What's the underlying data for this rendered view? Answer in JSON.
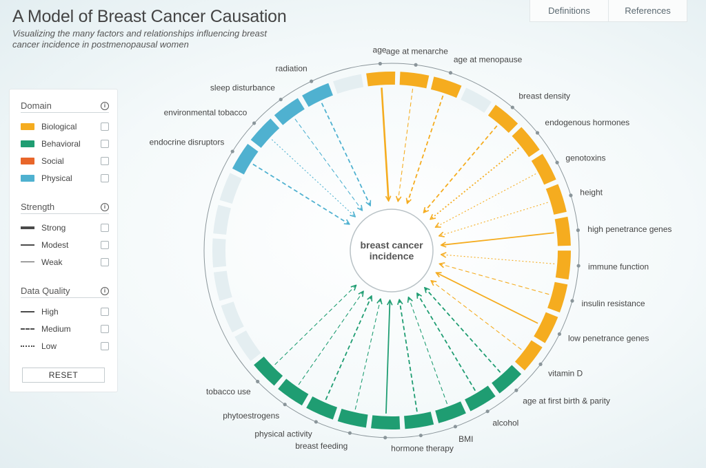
{
  "header": {
    "title": "A Model of Breast Cancer Causation",
    "subtitle": "Visualizing the many factors and relationships influencing breast cancer incidence in postmenopausal women"
  },
  "tabs": [
    {
      "label": "Definitions"
    },
    {
      "label": "References"
    }
  ],
  "colors": {
    "biological": "#f5ac1f",
    "behavioral": "#1f9d72",
    "social": "#e8662a",
    "physical": "#4fb1d0",
    "empty": "#e4eef1"
  },
  "legend": {
    "domain": {
      "title": "Domain",
      "items": [
        {
          "label": "Biological",
          "color": "#f5ac1f"
        },
        {
          "label": "Behavioral",
          "color": "#1f9d72"
        },
        {
          "label": "Social",
          "color": "#e8662a"
        },
        {
          "label": "Physical",
          "color": "#4fb1d0"
        }
      ]
    },
    "strength": {
      "title": "Strength",
      "items": [
        {
          "label": "Strong"
        },
        {
          "label": "Modest"
        },
        {
          "label": "Weak"
        }
      ]
    },
    "quality": {
      "title": "Data Quality",
      "items": [
        {
          "label": "High"
        },
        {
          "label": "Medium"
        },
        {
          "label": "Low"
        }
      ]
    },
    "reset_label": "RESET"
  },
  "center": {
    "line1": "breast cancer",
    "line2": "incidence"
  },
  "segments": [
    {
      "id": "age",
      "label": "age",
      "domain": "biological",
      "index": 0,
      "strength": "strong",
      "quality": "high"
    },
    {
      "id": "age-at-menarche",
      "label": "age at menarche",
      "domain": "biological",
      "index": 1,
      "strength": "weak",
      "quality": "medium"
    },
    {
      "id": "age-at-menopause",
      "label": "age at menopause",
      "domain": "biological",
      "index": 2,
      "strength": "modest",
      "quality": "medium"
    },
    {
      "id": "breast-density",
      "label": "breast density",
      "domain": "biological",
      "index": 4,
      "strength": "modest",
      "quality": "medium"
    },
    {
      "id": "endogenous-hormones",
      "label": "endogenous hormones",
      "domain": "biological",
      "index": 5,
      "strength": "modest",
      "quality": "low"
    },
    {
      "id": "genotoxins",
      "label": "genotoxins",
      "domain": "biological",
      "index": 6,
      "strength": "weak",
      "quality": "low"
    },
    {
      "id": "height",
      "label": "height",
      "domain": "biological",
      "index": 7,
      "strength": "weak",
      "quality": "low"
    },
    {
      "id": "high-penetrance-genes",
      "label": "high penetrance genes",
      "domain": "biological",
      "index": 8,
      "strength": "modest",
      "quality": "high"
    },
    {
      "id": "immune-function",
      "label": "immune function",
      "domain": "biological",
      "index": 9,
      "strength": "weak",
      "quality": "low"
    },
    {
      "id": "insulin-resistance",
      "label": "insulin resistance",
      "domain": "biological",
      "index": 10,
      "strength": "weak",
      "quality": "medium"
    },
    {
      "id": "low-penetrance-genes",
      "label": "low penetrance genes",
      "domain": "biological",
      "index": 11,
      "strength": "modest",
      "quality": "high"
    },
    {
      "id": "vitamin-d",
      "label": "vitamin D",
      "domain": "biological",
      "index": 12,
      "strength": "weak",
      "quality": "medium"
    },
    {
      "id": "age-at-first-birth",
      "label": "age at first birth & parity",
      "domain": "behavioral",
      "index": 13,
      "strength": "modest",
      "quality": "medium"
    },
    {
      "id": "alcohol",
      "label": "alcohol",
      "domain": "behavioral",
      "index": 14,
      "strength": "modest",
      "quality": "medium"
    },
    {
      "id": "bmi",
      "label": "BMI",
      "domain": "behavioral",
      "index": 15,
      "strength": "weak",
      "quality": "medium"
    },
    {
      "id": "hormone-therapy",
      "label": "hormone therapy",
      "domain": "behavioral",
      "index": 16,
      "strength": "modest",
      "quality": "medium"
    },
    {
      "id": "hormone-therapy-2",
      "label": "",
      "domain": "behavioral",
      "index": 17,
      "strength": "modest",
      "quality": "high"
    },
    {
      "id": "breast-feeding",
      "label": "breast feeding",
      "domain": "behavioral",
      "index": 18,
      "strength": "weak",
      "quality": "medium"
    },
    {
      "id": "physical-activity",
      "label": "physical activity",
      "domain": "behavioral",
      "index": 19,
      "strength": "modest",
      "quality": "medium"
    },
    {
      "id": "phytoestrogens",
      "label": "phytoestrogens",
      "domain": "behavioral",
      "index": 20,
      "strength": "weak",
      "quality": "medium"
    },
    {
      "id": "tobacco-use",
      "label": "tobacco use",
      "domain": "behavioral",
      "index": 21,
      "strength": "weak",
      "quality": "medium"
    },
    {
      "id": "endocrine-disruptors",
      "label": "endocrine disruptors",
      "domain": "physical",
      "index": 28,
      "strength": "modest",
      "quality": "medium"
    },
    {
      "id": "environmental-tobacco",
      "label": "environmental tobacco",
      "domain": "physical",
      "index": 29,
      "strength": "weak",
      "quality": "low"
    },
    {
      "id": "sleep-disturbance",
      "label": "sleep disturbance",
      "domain": "physical",
      "index": 30,
      "strength": "weak",
      "quality": "medium"
    },
    {
      "id": "radiation",
      "label": "radiation",
      "domain": "physical",
      "index": 31,
      "strength": "modest",
      "quality": "medium"
    }
  ],
  "empty_indices": [
    3,
    22,
    23,
    24,
    25,
    26,
    27,
    32
  ]
}
